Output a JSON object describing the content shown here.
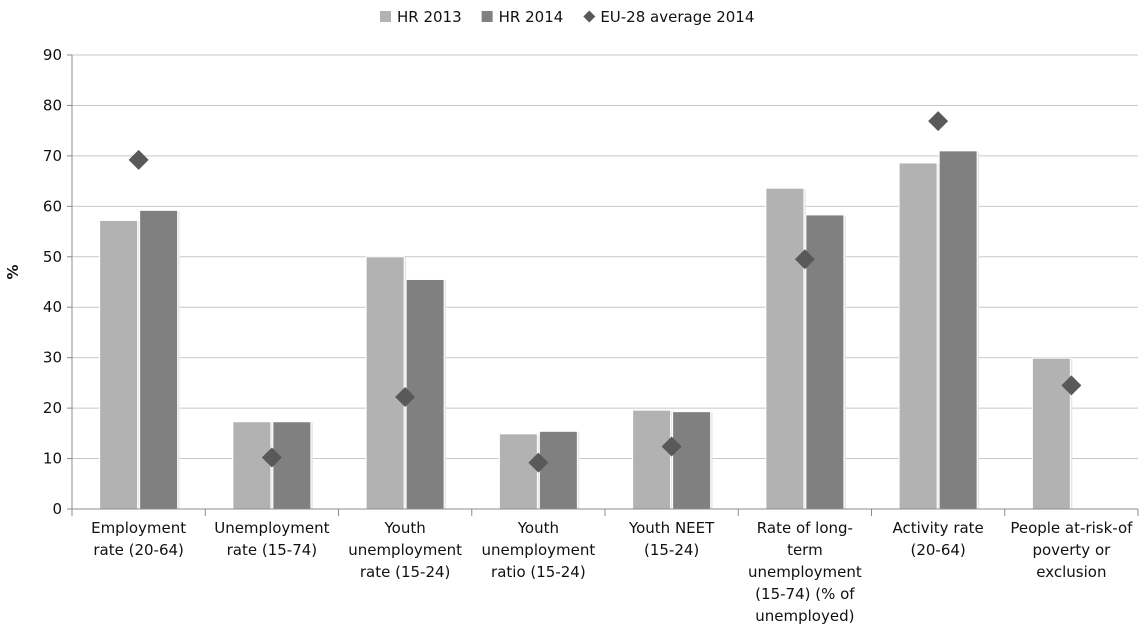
{
  "chart_data": {
    "type": "bar",
    "title": "",
    "xlabel": "",
    "ylabel": "%",
    "ylim": [
      0,
      90
    ],
    "yticks": [
      0,
      10,
      20,
      30,
      40,
      50,
      60,
      70,
      80,
      90
    ],
    "grid": true,
    "legend_position": "top-center",
    "categories": [
      [
        "Employment",
        "rate (20-64)"
      ],
      [
        "Unemployment",
        "rate (15-74)"
      ],
      [
        "Youth",
        "unemployment",
        "rate (15-24)"
      ],
      [
        "Youth",
        "unemployment",
        "ratio (15-24)"
      ],
      [
        "Youth NEET",
        "(15-24)"
      ],
      [
        "Rate of long-",
        "term",
        "unemployment",
        "(15-74) (% of",
        "unemployed)"
      ],
      [
        "Activity rate",
        "(20-64)"
      ],
      [
        "People at-risk-of",
        "poverty or",
        "exclusion"
      ]
    ],
    "series": [
      {
        "name": "HR 2013",
        "kind": "bar",
        "color": "#b2b2b2",
        "values": [
          57.2,
          17.3,
          50.0,
          14.9,
          19.6,
          63.6,
          68.6,
          29.9
        ]
      },
      {
        "name": "HR 2014",
        "kind": "bar",
        "color": "#808080",
        "values": [
          59.2,
          17.3,
          45.5,
          15.4,
          19.3,
          58.3,
          71.0,
          null
        ]
      },
      {
        "name": "EU-28 average 2014",
        "kind": "marker",
        "marker": "diamond",
        "color": "#595959",
        "values": [
          69.2,
          10.2,
          22.2,
          9.2,
          12.4,
          49.5,
          76.9,
          24.5
        ]
      }
    ]
  }
}
